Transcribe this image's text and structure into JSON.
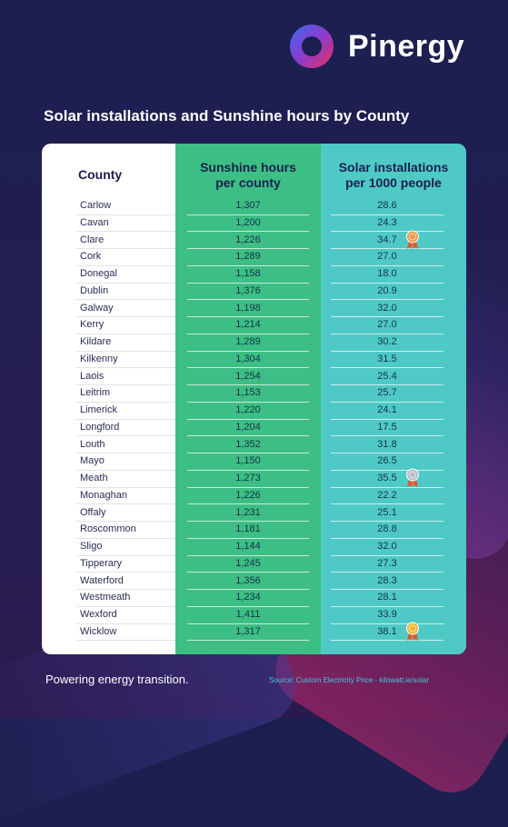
{
  "brand": {
    "name": "Pinergy"
  },
  "title": "Solar installations and Sunshine hours by County",
  "chart_data": {
    "type": "table",
    "columns": [
      "County",
      "Sunshine hours per county",
      "Solar installations per 1000 people"
    ],
    "rows": [
      {
        "county": "Carlow",
        "sunshine": "1,307",
        "solar": "28.6",
        "medal": ""
      },
      {
        "county": "Cavan",
        "sunshine": "1,200",
        "solar": "24.3",
        "medal": ""
      },
      {
        "county": "Clare",
        "sunshine": "1,226",
        "solar": "34.7",
        "medal": "bronze"
      },
      {
        "county": "Cork",
        "sunshine": "1,289",
        "solar": "27.0",
        "medal": ""
      },
      {
        "county": "Donegal",
        "sunshine": "1,158",
        "solar": "18.0",
        "medal": ""
      },
      {
        "county": "Dublin",
        "sunshine": "1,376",
        "solar": "20.9",
        "medal": ""
      },
      {
        "county": "Galway",
        "sunshine": "1,198",
        "solar": "32.0",
        "medal": ""
      },
      {
        "county": "Kerry",
        "sunshine": "1,214",
        "solar": "27.0",
        "medal": ""
      },
      {
        "county": "Kildare",
        "sunshine": "1,289",
        "solar": "30.2",
        "medal": ""
      },
      {
        "county": "Kilkenny",
        "sunshine": "1,304",
        "solar": "31.5",
        "medal": ""
      },
      {
        "county": "Laois",
        "sunshine": "1,254",
        "solar": "25.4",
        "medal": ""
      },
      {
        "county": "Leitrim",
        "sunshine": "1,153",
        "solar": "25.7",
        "medal": ""
      },
      {
        "county": "Limerick",
        "sunshine": "1,220",
        "solar": "24.1",
        "medal": ""
      },
      {
        "county": "Longford",
        "sunshine": "1,204",
        "solar": "17.5",
        "medal": ""
      },
      {
        "county": "Louth",
        "sunshine": "1,352",
        "solar": "31.8",
        "medal": ""
      },
      {
        "county": "Mayo",
        "sunshine": "1,150",
        "solar": "26.5",
        "medal": ""
      },
      {
        "county": "Meath",
        "sunshine": "1,273",
        "solar": "35.5",
        "medal": "silver"
      },
      {
        "county": "Monaghan",
        "sunshine": "1,226",
        "solar": "22.2",
        "medal": ""
      },
      {
        "county": "Offaly",
        "sunshine": "1,231",
        "solar": "25.1",
        "medal": ""
      },
      {
        "county": "Roscommon",
        "sunshine": "1,181",
        "solar": "28.8",
        "medal": ""
      },
      {
        "county": "Sligo",
        "sunshine": "1,144",
        "solar": "32.0",
        "medal": ""
      },
      {
        "county": "Tipperary",
        "sunshine": "1,245",
        "solar": "27.3",
        "medal": ""
      },
      {
        "county": "Waterford",
        "sunshine": "1,356",
        "solar": "28.3",
        "medal": ""
      },
      {
        "county": "Westmeath",
        "sunshine": "1,234",
        "solar": "28.1",
        "medal": ""
      },
      {
        "county": "Wexford",
        "sunshine": "1,411",
        "solar": "33.9",
        "medal": ""
      },
      {
        "county": "Wicklow",
        "sunshine": "1,317",
        "solar": "38.1",
        "medal": "gold"
      }
    ]
  },
  "colors": {
    "background": "#1b1f4f",
    "sunshine_column": "#3dbe84",
    "solar_column": "#4fc9c6",
    "gold": "#f2b632",
    "silver": "#b9bcc4",
    "bronze": "#e89a4e",
    "ribbon": "#e2572b"
  },
  "footer": {
    "tagline": "Powering energy transition.",
    "source": "Source: Custom Electricity Price - kilowatt.ie/solar"
  }
}
